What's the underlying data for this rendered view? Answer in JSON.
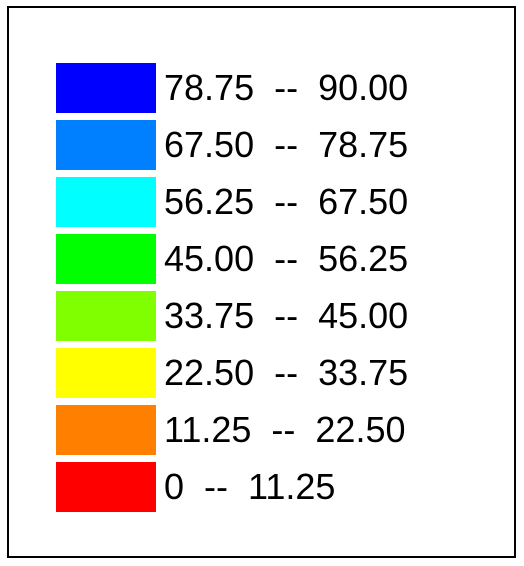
{
  "legend": {
    "items": [
      {
        "label": "78.75  --  90.00",
        "color": "#0000ff"
      },
      {
        "label": "67.50  --  78.75",
        "color": "#0080ff"
      },
      {
        "label": "56.25  --  67.50",
        "color": "#00ffff"
      },
      {
        "label": "45.00  --  56.25",
        "color": "#00ff00"
      },
      {
        "label": "33.75  --  45.00",
        "color": "#80ff00"
      },
      {
        "label": "22.50  --  33.75",
        "color": "#ffff00"
      },
      {
        "label": "11.25  --  22.50",
        "color": "#ff8000"
      },
      {
        "label": "0  --  11.25",
        "color": "#ff0000"
      }
    ]
  }
}
